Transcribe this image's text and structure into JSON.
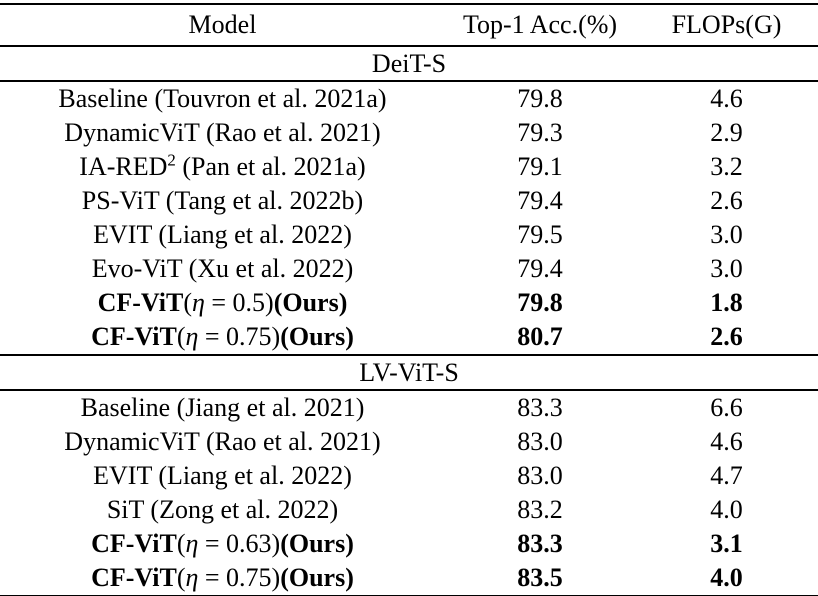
{
  "colors": {
    "text": "#000000",
    "background": "#ffffff",
    "rule": "#000000"
  },
  "table": {
    "columns": [
      "Model",
      "Top-1 Acc.(%)",
      "FLOPs(G)"
    ],
    "sections": [
      {
        "title": "DeiT-S",
        "rows": [
          {
            "model": [
              {
                "t": "Baseline (Touvron et al. 2021a)"
              }
            ],
            "acc": "79.8",
            "flops": "4.6"
          },
          {
            "model": [
              {
                "t": "DynamicViT (Rao et al. 2021)"
              }
            ],
            "acc": "79.3",
            "flops": "2.9"
          },
          {
            "model": [
              {
                "t": "IA-RED"
              },
              {
                "t": "2",
                "sup": true
              },
              {
                "t": " (Pan et al. 2021a)"
              }
            ],
            "acc": "79.1",
            "flops": "3.2"
          },
          {
            "model": [
              {
                "t": "PS-ViT (Tang et al. 2022b)"
              }
            ],
            "acc": "79.4",
            "flops": "2.6"
          },
          {
            "model": [
              {
                "t": "EVIT (Liang et al. 2022)"
              }
            ],
            "acc": "79.5",
            "flops": "3.0"
          },
          {
            "model": [
              {
                "t": "Evo-ViT (Xu et al. 2022)"
              }
            ],
            "acc": "79.4",
            "flops": "3.0"
          },
          {
            "model": [
              {
                "t": "CF-ViT",
                "b": true
              },
              {
                "t": "("
              },
              {
                "t": "η",
                "i": true
              },
              {
                "t": " = 0.5)"
              },
              {
                "t": "(Ours)",
                "b": true
              }
            ],
            "acc": "79.8",
            "flops": "1.8",
            "bold": true
          },
          {
            "model": [
              {
                "t": "CF-ViT",
                "b": true
              },
              {
                "t": "("
              },
              {
                "t": "η",
                "i": true
              },
              {
                "t": " = 0.75)"
              },
              {
                "t": "(Ours)",
                "b": true
              }
            ],
            "acc": "80.7",
            "flops": "2.6",
            "bold": true
          }
        ]
      },
      {
        "title": "LV-ViT-S",
        "rows": [
          {
            "model": [
              {
                "t": "Baseline (Jiang et al. 2021)"
              }
            ],
            "acc": "83.3",
            "flops": "6.6"
          },
          {
            "model": [
              {
                "t": "DynamicViT (Rao et al. 2021)"
              }
            ],
            "acc": "83.0",
            "flops": "4.6"
          },
          {
            "model": [
              {
                "t": "EVIT (Liang et al. 2022)"
              }
            ],
            "acc": "83.0",
            "flops": "4.7"
          },
          {
            "model": [
              {
                "t": "SiT (Zong et al. 2022)"
              }
            ],
            "acc": "83.2",
            "flops": "4.0"
          },
          {
            "model": [
              {
                "t": "CF-ViT",
                "b": true
              },
              {
                "t": "("
              },
              {
                "t": "η",
                "i": true
              },
              {
                "t": " = 0.63)"
              },
              {
                "t": "(Ours)",
                "b": true
              }
            ],
            "acc": "83.3",
            "flops": "3.1",
            "bold": true
          },
          {
            "model": [
              {
                "t": "CF-ViT",
                "b": true
              },
              {
                "t": "("
              },
              {
                "t": "η",
                "i": true
              },
              {
                "t": " = 0.75)"
              },
              {
                "t": "(Ours)",
                "b": true
              }
            ],
            "acc": "83.5",
            "flops": "4.0",
            "bold": true
          }
        ]
      }
    ]
  }
}
